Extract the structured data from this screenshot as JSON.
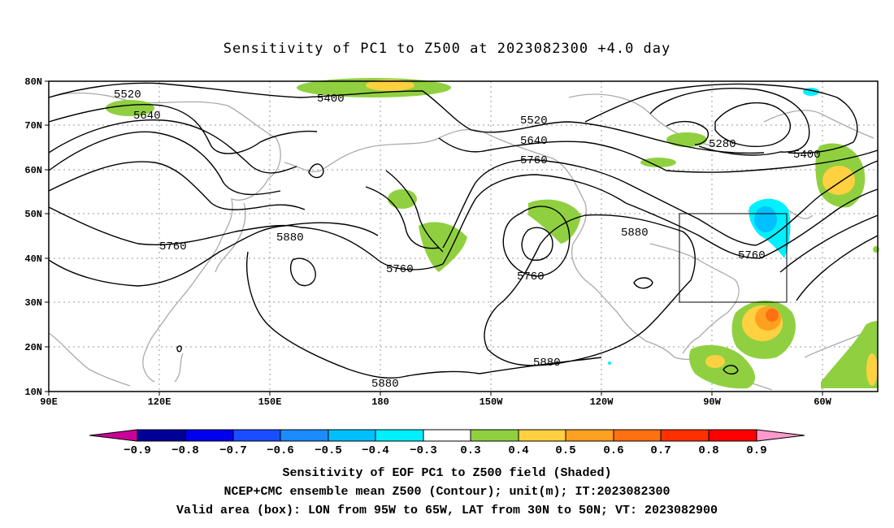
{
  "title": "Sensitivity of PC1 to Z500 at 2023082300 +4.0 day",
  "axes": {
    "lon_ticks": [
      "90E",
      "120E",
      "150E",
      "180",
      "150W",
      "120W",
      "90W",
      "60W"
    ],
    "lat_ticks": [
      "80N",
      "70N",
      "60N",
      "50N",
      "40N",
      "30N",
      "20N",
      "10N"
    ]
  },
  "contour_labels": [
    "5520",
    "5640",
    "5400",
    "5520",
    "5640",
    "5760",
    "5280",
    "5400",
    "5760",
    "5880",
    "5760",
    "5760",
    "5880",
    "5760",
    "5880",
    "5880"
  ],
  "box": {
    "lon_min": "95W",
    "lon_max": "65W",
    "lat_min": "30N",
    "lat_max": "50N"
  },
  "colors": {
    "neg09": "#cc0099",
    "neg08": "#000099",
    "neg07": "#0000ee",
    "neg06": "#1a4dff",
    "neg05": "#1a8cff",
    "neg04": "#00c0ff",
    "neg03": "#00f0ff",
    "white": "#ffffff",
    "pos03": "#90d040",
    "pos04": "#ffd040",
    "pos05": "#ffa020",
    "pos06": "#ff7010",
    "pos07": "#ff3000",
    "pos08": "#ff0000",
    "pos09": "#ff99cc"
  },
  "colorbar_labels": [
    "−0.9",
    "−0.8",
    "−0.7",
    "−0.6",
    "−0.5",
    "−0.4",
    "−0.3",
    "0.3",
    "0.4",
    "0.5",
    "0.6",
    "0.7",
    "0.8",
    "0.9"
  ],
  "captions": [
    "Sensitivity of EOF PC1 to Z500 field (Shaded)",
    "NCEP+CMC ensemble mean Z500 (Contour); unit(m); IT:2023082300",
    "Valid area (box): LON from 95W to 65W, LAT from 30N to 50N; VT: 2023082900"
  ]
}
